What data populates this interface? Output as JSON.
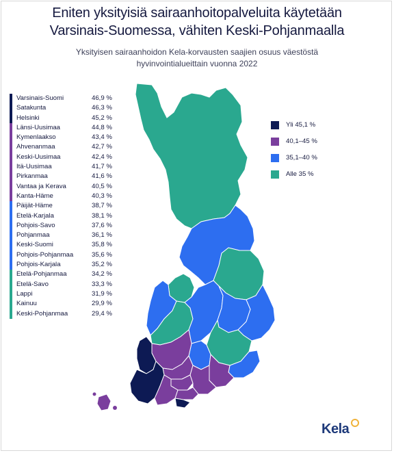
{
  "title_line1": "Eniten yksityisiä sairaanhoitopalveluita käytetään",
  "title_line2": "Varsinais-Suomessa, vähiten Keski-Pohjanmaalla",
  "subtitle_line1": "Yksityisen sairaanhoidon Kela-korvausten saajien osuus väestöstä",
  "subtitle_line2": "hyvinvointialueittain vuonna 2022",
  "colors": {
    "dark_navy": "#0d1a54",
    "purple": "#7a3e9d",
    "blue": "#2d6ef0",
    "teal": "#2aa88f"
  },
  "legend": [
    {
      "label": "Yli 45,1 %",
      "color": "#0d1a54"
    },
    {
      "label": "40,1–45 %",
      "color": "#7a3e9d"
    },
    {
      "label": "35,1–40 %",
      "color": "#2d6ef0"
    },
    {
      "label": "Alle 35 %",
      "color": "#2aa88f"
    }
  ],
  "regions": [
    {
      "name": "Varsinais-Suomi",
      "value": "46,9 %",
      "color": "#0d1a54"
    },
    {
      "name": "Satakunta",
      "value": "46,3 %",
      "color": "#0d1a54"
    },
    {
      "name": "Helsinki",
      "value": "45,2 %",
      "color": "#0d1a54"
    },
    {
      "name": "Länsi-Uusimaa",
      "value": "44,8 %",
      "color": "#7a3e9d"
    },
    {
      "name": "Kymenlaakso",
      "value": "43,4 %",
      "color": "#7a3e9d"
    },
    {
      "name": "Ahvenanmaa",
      "value": "42,7 %",
      "color": "#7a3e9d"
    },
    {
      "name": "Keski-Uusimaa",
      "value": "42,4 %",
      "color": "#7a3e9d"
    },
    {
      "name": "Itä-Uusimaa",
      "value": "41,7 %",
      "color": "#7a3e9d"
    },
    {
      "name": "Pirkanmaa",
      "value": "41,6 %",
      "color": "#7a3e9d"
    },
    {
      "name": "Vantaa ja Kerava",
      "value": "40,5 %",
      "color": "#7a3e9d"
    },
    {
      "name": "Kanta-Häme",
      "value": "40,3 %",
      "color": "#7a3e9d"
    },
    {
      "name": "Päijät-Häme",
      "value": "38,7 %",
      "color": "#2d6ef0"
    },
    {
      "name": "Etelä-Karjala",
      "value": "38,1 %",
      "color": "#2d6ef0"
    },
    {
      "name": "Pohjois-Savo",
      "value": "37,6 %",
      "color": "#2d6ef0"
    },
    {
      "name": "Pohjanmaa",
      "value": "36,1 %",
      "color": "#2d6ef0"
    },
    {
      "name": "Keski-Suomi",
      "value": "35,8 %",
      "color": "#2d6ef0"
    },
    {
      "name": "Pohjois-Pohjanmaa",
      "value": "35,6 %",
      "color": "#2d6ef0"
    },
    {
      "name": "Pohjois-Karjala",
      "value": "35,2 %",
      "color": "#2d6ef0"
    },
    {
      "name": "Etelä-Pohjanmaa",
      "value": "34,2 %",
      "color": "#2aa88f"
    },
    {
      "name": "Etelä-Savo",
      "value": "33,3 %",
      "color": "#2aa88f"
    },
    {
      "name": "Lappi",
      "value": "31,9 %",
      "color": "#2aa88f"
    },
    {
      "name": "Kainuu",
      "value": "29,9 %",
      "color": "#2aa88f"
    },
    {
      "name": "Keski-Pohjanmaa",
      "value": "29,4 %",
      "color": "#2aa88f"
    }
  ],
  "logo": {
    "text": "Kela",
    "mark_color": "#f0b33a"
  }
}
